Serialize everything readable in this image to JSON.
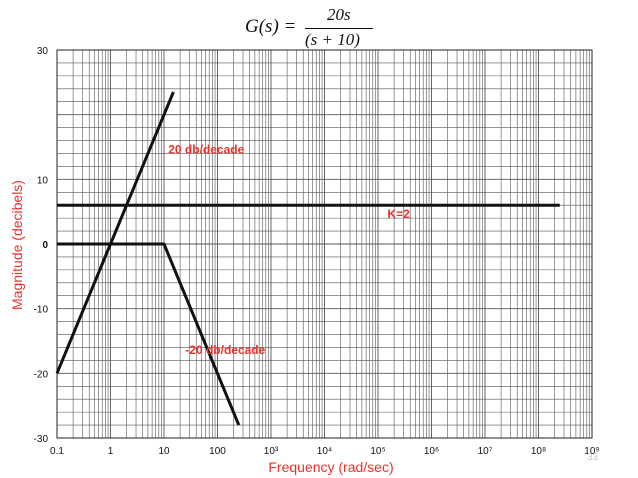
{
  "formula": {
    "lhs": "G(s) =",
    "numerator": "20s",
    "denominator": "(s + 10)"
  },
  "page_number": "33",
  "chart_data": {
    "type": "line",
    "title": "",
    "xlabel": "Frequency (rad/sec)",
    "ylabel": "Magnitude (decibels)",
    "x_scale": "log",
    "xlim": [
      0.1,
      1000000000
    ],
    "ylim": [
      -30,
      30
    ],
    "x_tick_labels": [
      "0.1",
      "1",
      "10",
      "100",
      "10³",
      "10⁴",
      "10⁵",
      "10⁶",
      "10⁷",
      "10⁸",
      "10⁹"
    ],
    "y_tick_labels": [
      "30",
      "10",
      "0",
      "-10",
      "-20",
      "-30"
    ],
    "y_tick_values": [
      30,
      10,
      0,
      -10,
      -20,
      -30
    ],
    "grid": true,
    "series": [
      {
        "x": [
          0.1,
          15
        ],
        "y": [
          -20,
          23.5
        ]
      },
      {
        "x": [
          0.1,
          250000000
        ],
        "y": [
          6,
          6
        ]
      },
      {
        "x": [
          0.1,
          10,
          250
        ],
        "y": [
          0,
          0,
          -28
        ]
      }
    ],
    "annotations": [
      {
        "text": "20 db/decade",
        "x": 12,
        "y": 14
      },
      {
        "text": "K=2",
        "x": 150000,
        "y": 4
      },
      {
        "text": "-20 db/decade",
        "x": 25,
        "y": -17
      }
    ],
    "colors": {
      "line": "#111111",
      "grid": "#555555",
      "label": "#e8332c",
      "tick": "#111111"
    }
  }
}
